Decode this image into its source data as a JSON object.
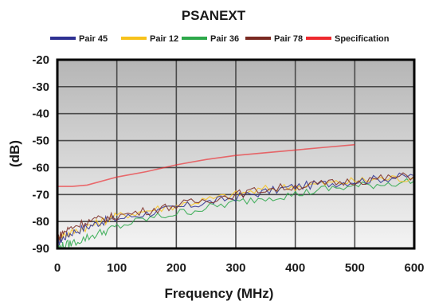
{
  "chart_data": {
    "type": "line",
    "title": "PSANEXT",
    "xlabel": "Frequency (MHz)",
    "ylabel": "(dB)",
    "xlim": [
      0,
      600
    ],
    "ylim": [
      -90,
      -20
    ],
    "xticks": [
      0,
      100,
      200,
      300,
      400,
      500,
      600
    ],
    "yticks": [
      -20,
      -30,
      -40,
      -50,
      -60,
      -70,
      -80,
      -90
    ],
    "grid": true,
    "legend_position": "top",
    "series": [
      {
        "name": "Pair 45",
        "color": "#2e3192",
        "x": [
          1,
          10,
          25,
          50,
          75,
          100,
          150,
          200,
          250,
          300,
          350,
          400,
          450,
          500,
          550,
          600
        ],
        "y": [
          -88,
          -86,
          -84,
          -82,
          -80,
          -79,
          -77,
          -75,
          -73,
          -71,
          -69,
          -67,
          -66,
          -65,
          -64,
          -63
        ]
      },
      {
        "name": "Pair 12",
        "color": "#f7c21b",
        "x": [
          1,
          10,
          25,
          50,
          75,
          100,
          150,
          200,
          250,
          300,
          350,
          400,
          450,
          500,
          550,
          600
        ],
        "y": [
          -87,
          -85,
          -84,
          -82,
          -80,
          -78,
          -76,
          -74,
          -72,
          -70,
          -68,
          -67,
          -66,
          -65,
          -64,
          -64
        ]
      },
      {
        "name": "Pair 36",
        "color": "#2da84a",
        "x": [
          1,
          10,
          25,
          50,
          75,
          100,
          150,
          200,
          250,
          300,
          350,
          400,
          450,
          500,
          550,
          600
        ],
        "y": [
          -90,
          -89,
          -88,
          -86,
          -84,
          -82,
          -79,
          -77,
          -75,
          -73,
          -71,
          -70,
          -68,
          -67,
          -66,
          -65
        ]
      },
      {
        "name": "Pair 78",
        "color": "#7a2a22",
        "x": [
          1,
          10,
          25,
          50,
          75,
          100,
          150,
          200,
          250,
          300,
          350,
          400,
          450,
          500,
          550,
          600
        ],
        "y": [
          -86,
          -84,
          -82,
          -80,
          -79,
          -78,
          -76,
          -74,
          -72,
          -70,
          -68,
          -67,
          -66,
          -65,
          -64,
          -63
        ]
      },
      {
        "name": "Specification",
        "color": "#ee2a2e",
        "x": [
          1,
          25,
          50,
          75,
          100,
          150,
          200,
          250,
          300,
          350,
          400,
          450,
          500
        ],
        "y": [
          -67,
          -67,
          -66.5,
          -65,
          -63.5,
          -61.5,
          -59,
          -57,
          -55.5,
          -54.5,
          -53.5,
          -52.5,
          -51.5
        ]
      }
    ]
  }
}
